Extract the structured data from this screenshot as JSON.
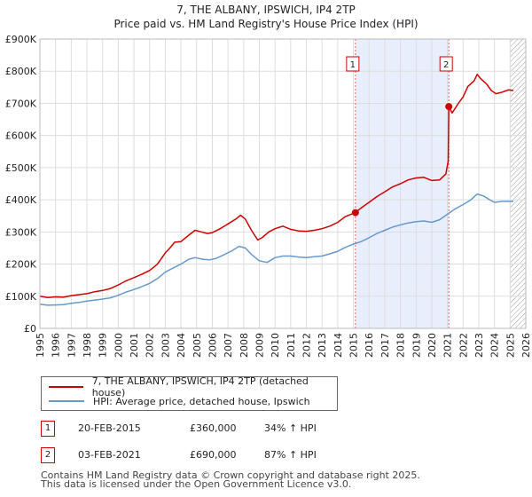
{
  "chart_data": {
    "type": "line",
    "title": "7, THE ALBANY, IPSWICH, IP4 2TP",
    "subtitle": "Price paid vs. HM Land Registry's House Price Index (HPI)",
    "x_ticks": [
      "1995",
      "1996",
      "1997",
      "1998",
      "1999",
      "2000",
      "2001",
      "2002",
      "2003",
      "2004",
      "2005",
      "2006",
      "2007",
      "2008",
      "2009",
      "2010",
      "2011",
      "2012",
      "2013",
      "2014",
      "2015",
      "2016",
      "2017",
      "2018",
      "2019",
      "2020",
      "2021",
      "2022",
      "2023",
      "2024",
      "2025",
      "2026"
    ],
    "y_ticks": [
      "£0",
      "£100K",
      "£200K",
      "£300K",
      "£400K",
      "£500K",
      "£600K",
      "£700K",
      "£800K",
      "£900K"
    ],
    "xlim": [
      1995,
      2026
    ],
    "ylim": [
      0,
      900000
    ],
    "series": [
      {
        "name": "7, THE ALBANY, IPSWICH, IP4 2TP (detached house)",
        "color": "#cc0000",
        "points": [
          [
            1995,
            100000
          ],
          [
            1995.5,
            96000
          ],
          [
            1996,
            98000
          ],
          [
            1996.5,
            97000
          ],
          [
            1997,
            102000
          ],
          [
            1997.5,
            105000
          ],
          [
            1998,
            108000
          ],
          [
            1998.5,
            114000
          ],
          [
            1999,
            118000
          ],
          [
            1999.5,
            124000
          ],
          [
            2000,
            135000
          ],
          [
            2000.5,
            148000
          ],
          [
            2001,
            158000
          ],
          [
            2001.5,
            168000
          ],
          [
            2002,
            180000
          ],
          [
            2002.5,
            200000
          ],
          [
            2003,
            235000
          ],
          [
            2003.3,
            250000
          ],
          [
            2003.6,
            268000
          ],
          [
            2004,
            270000
          ],
          [
            2004.5,
            290000
          ],
          [
            2004.9,
            305000
          ],
          [
            2005.3,
            300000
          ],
          [
            2005.7,
            295000
          ],
          [
            2006,
            298000
          ],
          [
            2006.5,
            310000
          ],
          [
            2007,
            325000
          ],
          [
            2007.5,
            340000
          ],
          [
            2007.8,
            352000
          ],
          [
            2008.1,
            340000
          ],
          [
            2008.5,
            305000
          ],
          [
            2008.9,
            275000
          ],
          [
            2009.2,
            283000
          ],
          [
            2009.6,
            300000
          ],
          [
            2010,
            310000
          ],
          [
            2010.5,
            318000
          ],
          [
            2011,
            308000
          ],
          [
            2011.5,
            303000
          ],
          [
            2012,
            302000
          ],
          [
            2012.5,
            305000
          ],
          [
            2013,
            310000
          ],
          [
            2013.5,
            318000
          ],
          [
            2014,
            330000
          ],
          [
            2014.5,
            348000
          ],
          [
            2015.13,
            360000
          ],
          [
            2015.5,
            375000
          ],
          [
            2016,
            392000
          ],
          [
            2016.5,
            410000
          ],
          [
            2017,
            425000
          ],
          [
            2017.5,
            440000
          ],
          [
            2018,
            450000
          ],
          [
            2018.5,
            462000
          ],
          [
            2019,
            468000
          ],
          [
            2019.5,
            470000
          ],
          [
            2020,
            460000
          ],
          [
            2020.5,
            462000
          ],
          [
            2020.9,
            480000
          ],
          [
            2021.05,
            520000
          ],
          [
            2021.09,
            690000
          ],
          [
            2021.3,
            670000
          ],
          [
            2021.7,
            700000
          ],
          [
            2022,
            720000
          ],
          [
            2022.3,
            752000
          ],
          [
            2022.7,
            770000
          ],
          [
            2022.9,
            790000
          ],
          [
            2023.1,
            778000
          ],
          [
            2023.5,
            760000
          ],
          [
            2023.8,
            740000
          ],
          [
            2024.1,
            730000
          ],
          [
            2024.5,
            735000
          ],
          [
            2024.9,
            742000
          ],
          [
            2025.2,
            740000
          ]
        ]
      },
      {
        "name": "HPI: Average price, detached house, Ipswich",
        "color": "#6699cc",
        "points": [
          [
            1995,
            75000
          ],
          [
            1995.5,
            72000
          ],
          [
            1996,
            73000
          ],
          [
            1996.5,
            74000
          ],
          [
            1997,
            78000
          ],
          [
            1997.5,
            81000
          ],
          [
            1998,
            85000
          ],
          [
            1998.5,
            88000
          ],
          [
            1999,
            91000
          ],
          [
            1999.5,
            95000
          ],
          [
            2000,
            103000
          ],
          [
            2000.5,
            113000
          ],
          [
            2001,
            121000
          ],
          [
            2001.5,
            130000
          ],
          [
            2002,
            140000
          ],
          [
            2002.5,
            155000
          ],
          [
            2003,
            175000
          ],
          [
            2003.5,
            188000
          ],
          [
            2004,
            200000
          ],
          [
            2004.5,
            215000
          ],
          [
            2004.9,
            220000
          ],
          [
            2005.4,
            215000
          ],
          [
            2005.8,
            213000
          ],
          [
            2006.2,
            217000
          ],
          [
            2006.7,
            228000
          ],
          [
            2007.2,
            240000
          ],
          [
            2007.7,
            255000
          ],
          [
            2008.1,
            250000
          ],
          [
            2008.5,
            230000
          ],
          [
            2009,
            210000
          ],
          [
            2009.5,
            205000
          ],
          [
            2010,
            220000
          ],
          [
            2010.5,
            225000
          ],
          [
            2011,
            225000
          ],
          [
            2011.5,
            222000
          ],
          [
            2012,
            220000
          ],
          [
            2012.5,
            223000
          ],
          [
            2013,
            225000
          ],
          [
            2013.5,
            232000
          ],
          [
            2014,
            240000
          ],
          [
            2014.5,
            252000
          ],
          [
            2015,
            262000
          ],
          [
            2015.5,
            270000
          ],
          [
            2016,
            282000
          ],
          [
            2016.5,
            295000
          ],
          [
            2017,
            305000
          ],
          [
            2017.5,
            315000
          ],
          [
            2018,
            322000
          ],
          [
            2018.5,
            328000
          ],
          [
            2019,
            332000
          ],
          [
            2019.5,
            334000
          ],
          [
            2020,
            330000
          ],
          [
            2020.5,
            338000
          ],
          [
            2021,
            355000
          ],
          [
            2021.5,
            372000
          ],
          [
            2022,
            385000
          ],
          [
            2022.5,
            400000
          ],
          [
            2022.9,
            418000
          ],
          [
            2023.3,
            412000
          ],
          [
            2023.7,
            400000
          ],
          [
            2024,
            392000
          ],
          [
            2024.5,
            395000
          ],
          [
            2025.2,
            395000
          ]
        ]
      }
    ],
    "markers": [
      {
        "label": "1",
        "x": 2015.13,
        "y": 360000
      },
      {
        "label": "2",
        "x": 2021.09,
        "y": 690000
      }
    ],
    "shaded_range": [
      2015.13,
      2021.09
    ],
    "hatched_from": 2025.0,
    "legend": [
      {
        "label": "7, THE ALBANY, IPSWICH, IP4 2TP (detached house)",
        "color": "#cc0000"
      },
      {
        "label": "HPI: Average price, detached house, Ipswich",
        "color": "#6699cc"
      }
    ],
    "legend_position": "below"
  },
  "transactions": [
    {
      "num": "1",
      "date": "20-FEB-2015",
      "price": "£360,000",
      "hpi": "34% ↑ HPI"
    },
    {
      "num": "2",
      "date": "03-FEB-2021",
      "price": "£690,000",
      "hpi": "87% ↑ HPI"
    }
  ],
  "footer": {
    "line1": "Contains HM Land Registry data © Crown copyright and database right 2025.",
    "line2": "This data is licensed under the Open Government Licence v3.0."
  }
}
